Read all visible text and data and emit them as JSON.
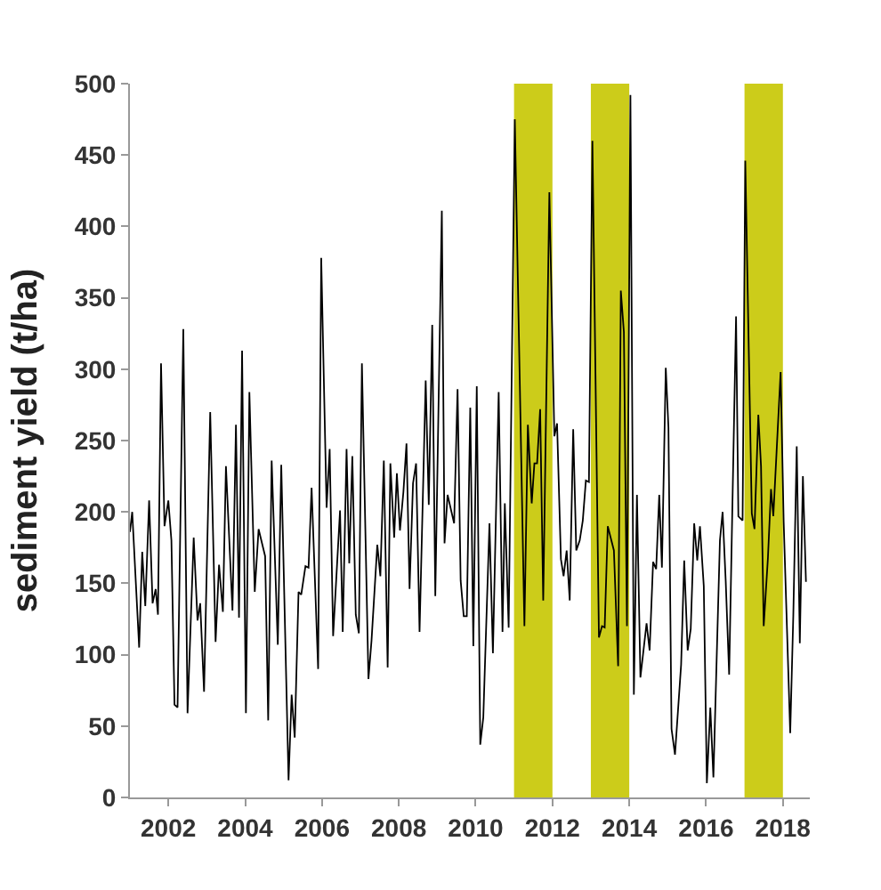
{
  "chart_data": {
    "type": "line",
    "ylabel": "sediment yield (t/ha)",
    "x": [
      2001.0,
      2001.06,
      2001.24,
      2001.32,
      2001.4,
      2001.5,
      2001.59,
      2001.67,
      2001.73,
      2001.81,
      2001.9,
      2002.0,
      2002.08,
      2002.16,
      2002.24,
      2002.39,
      2002.5,
      2002.66,
      2002.76,
      2002.83,
      2002.93,
      2003.09,
      2003.23,
      2003.32,
      2003.42,
      2003.5,
      2003.67,
      2003.76,
      2003.84,
      2003.92,
      2004.02,
      2004.11,
      2004.25,
      2004.35,
      2004.52,
      2004.6,
      2004.69,
      2004.85,
      2004.94,
      2005.13,
      2005.21,
      2005.29,
      2005.39,
      2005.46,
      2005.57,
      2005.65,
      2005.73,
      2005.9,
      2005.98,
      2006.12,
      2006.2,
      2006.29,
      2006.47,
      2006.54,
      2006.64,
      2006.71,
      2006.79,
      2006.88,
      2006.96,
      2007.04,
      2007.21,
      2007.29,
      2007.44,
      2007.52,
      2007.61,
      2007.71,
      2007.78,
      2007.88,
      2007.95,
      2008.03,
      2008.12,
      2008.2,
      2008.28,
      2008.37,
      2008.45,
      2008.54,
      2008.7,
      2008.78,
      2008.87,
      2008.95,
      2009.12,
      2009.19,
      2009.27,
      2009.44,
      2009.53,
      2009.61,
      2009.69,
      2009.77,
      2009.86,
      2009.94,
      2010.03,
      2010.12,
      2010.2,
      2010.36,
      2010.45,
      2010.6,
      2010.7,
      2010.76,
      2010.86,
      2011.02,
      2011.27,
      2011.36,
      2011.46,
      2011.53,
      2011.6,
      2011.68,
      2011.76,
      2011.92,
      2012.05,
      2012.12,
      2012.22,
      2012.29,
      2012.37,
      2012.45,
      2012.54,
      2012.62,
      2012.71,
      2012.79,
      2012.87,
      2012.95,
      2013.04,
      2013.21,
      2013.29,
      2013.36,
      2013.44,
      2013.6,
      2013.71,
      2013.78,
      2013.86,
      2013.94,
      2014.03,
      2014.12,
      2014.2,
      2014.29,
      2014.45,
      2014.53,
      2014.62,
      2014.7,
      2014.78,
      2014.85,
      2014.95,
      2015.02,
      2015.1,
      2015.19,
      2015.35,
      2015.43,
      2015.52,
      2015.6,
      2015.69,
      2015.77,
      2015.84,
      2015.94,
      2016.02,
      2016.11,
      2016.19,
      2016.36,
      2016.43,
      2016.51,
      2016.6,
      2016.78,
      2016.84,
      2016.95,
      2017.02,
      2017.19,
      2017.26,
      2017.36,
      2017.43,
      2017.5,
      2017.61,
      2017.69,
      2017.75,
      2017.94,
      2018.02,
      2018.19,
      2018.27,
      2018.36,
      2018.44,
      2018.52,
      2018.6
    ],
    "series": [
      {
        "color": "#000000",
        "values": [
          186,
          200,
          105,
          172,
          134,
          208,
          136,
          146,
          128,
          304,
          190,
          208,
          180,
          65,
          63,
          328,
          59,
          182,
          124,
          136,
          74,
          270,
          109,
          163,
          130,
          232,
          131,
          261,
          126,
          313,
          59,
          284,
          144,
          188,
          169,
          54,
          236,
          107,
          233,
          12,
          72,
          42,
          144,
          142,
          162,
          161,
          217,
          90,
          378,
          203,
          244,
          113,
          201,
          116,
          244,
          164,
          239,
          128,
          115,
          304,
          83,
          110,
          177,
          155,
          236,
          91,
          234,
          182,
          227,
          187,
          214,
          248,
          146,
          220,
          234,
          116,
          292,
          205,
          331,
          141,
          411,
          178,
          212,
          192,
          286,
          152,
          127,
          127,
          273,
          106,
          288,
          37,
          56,
          192,
          101,
          284,
          116,
          206,
          119,
          475,
          120,
          261,
          206,
          234,
          234,
          272,
          138,
          424,
          253,
          262,
          167,
          155,
          173,
          138,
          258,
          173,
          180,
          194,
          222,
          221,
          460,
          112,
          120,
          119,
          190,
          173,
          92,
          355,
          326,
          120,
          492,
          72,
          212,
          84,
          122,
          103,
          165,
          160,
          212,
          161,
          301,
          259,
          48,
          30,
          93,
          166,
          103,
          118,
          192,
          166,
          190,
          148,
          10,
          63,
          14,
          180,
          200,
          152,
          86,
          337,
          197,
          194,
          446,
          199,
          188,
          268,
          232,
          120,
          168,
          216,
          197,
          298,
          193,
          45,
          127,
          246,
          108,
          225,
          151
        ]
      }
    ],
    "xlim": [
      2001,
      2018.7
    ],
    "xticks": [
      2002,
      2004,
      2006,
      2008,
      2010,
      2012,
      2014,
      2016,
      2018
    ],
    "ylim": [
      0,
      500
    ],
    "yticks": [
      0,
      50,
      100,
      150,
      200,
      250,
      300,
      350,
      400,
      450,
      500
    ],
    "bands": [
      {
        "axis": "x",
        "from": 2011,
        "to": 2012,
        "color": "#cccc1a"
      },
      {
        "axis": "x",
        "from": 2013,
        "to": 2014,
        "color": "#cccc1a"
      },
      {
        "axis": "x",
        "from": 2017,
        "to": 2018,
        "color": "#cccc1a"
      }
    ],
    "grid": false,
    "marker": "none",
    "line_style": "solid"
  }
}
